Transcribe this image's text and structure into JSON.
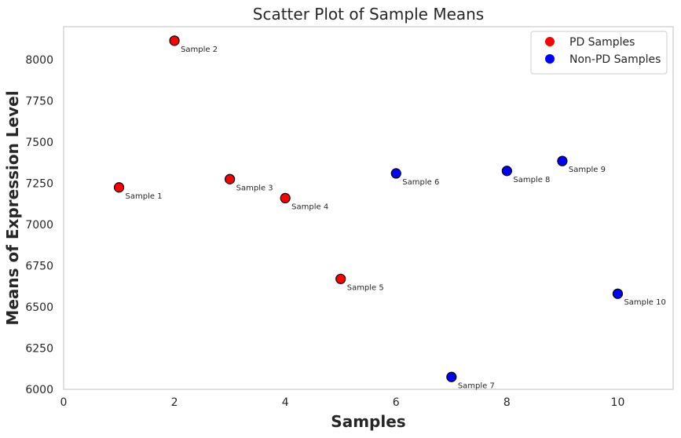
{
  "chart_data": {
    "type": "scatter",
    "title": "Scatter Plot of Sample Means",
    "xlabel": "Samples",
    "ylabel": "Means of Expression Level",
    "xlim": [
      0,
      11
    ],
    "ylim": [
      6000,
      8200
    ],
    "xticks": [
      0,
      2,
      4,
      6,
      8,
      10
    ],
    "yticks": [
      6000,
      6250,
      6500,
      6750,
      7000,
      7250,
      7500,
      7750,
      8000
    ],
    "grid": false,
    "legend_position": "top-right",
    "series": [
      {
        "name": "PD Samples",
        "color": "#ff0000",
        "points": [
          {
            "x": 1,
            "y": 7225,
            "label": "Sample 1"
          },
          {
            "x": 2,
            "y": 8115,
            "label": "Sample 2"
          },
          {
            "x": 3,
            "y": 7275,
            "label": "Sample 3"
          },
          {
            "x": 4,
            "y": 7160,
            "label": "Sample 4"
          },
          {
            "x": 5,
            "y": 6670,
            "label": "Sample 5"
          }
        ]
      },
      {
        "name": "Non-PD Samples",
        "color": "#0000ff",
        "points": [
          {
            "x": 6,
            "y": 7310,
            "label": "Sample 6"
          },
          {
            "x": 7,
            "y": 6075,
            "label": "Sample 7"
          },
          {
            "x": 8,
            "y": 7325,
            "label": "Sample 8"
          },
          {
            "x": 9,
            "y": 7385,
            "label": "Sample 9"
          },
          {
            "x": 10,
            "y": 6580,
            "label": "Sample 10"
          }
        ]
      }
    ]
  }
}
